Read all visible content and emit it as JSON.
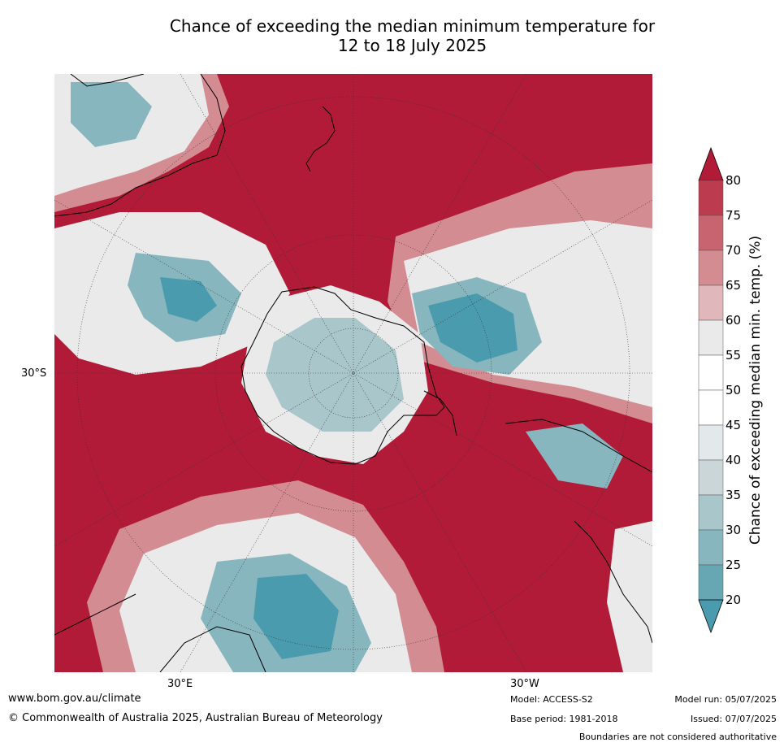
{
  "title_line1": "Chance of exceeding the median minimum temperature for",
  "title_line2": "12 to 18 July 2025",
  "lat_label": "30°S",
  "lon_label_left": "30°E",
  "lon_label_right": "30°W",
  "colorbar": {
    "label": "Chance of exceeding median min. temp. (%)",
    "ticks": [
      "80",
      "75",
      "70",
      "65",
      "60",
      "55",
      "50",
      "45",
      "40",
      "35",
      "30",
      "25",
      "20"
    ],
    "colors": [
      "#b21b37",
      "#bc3b4e",
      "#c8646f",
      "#d38c92",
      "#e0b7ba",
      "#eaeaea",
      "#ffffff",
      "#ffffff",
      "#e3e8eb",
      "#cbd6d9",
      "#a9c6cb",
      "#88b6bf",
      "#67a6b3",
      "#4a9bad"
    ],
    "extend": "both"
  },
  "colors": {
    "hot": "#b21b37",
    "warm2": "#c8646f",
    "warm1": "#e0b7ba",
    "neutral": "#eaeaea",
    "cool1": "#cbd6d9",
    "cool2": "#88b6bf",
    "cool3": "#4a9bad"
  },
  "footer": {
    "website": "www.bom.gov.au/climate",
    "copyright": "© Commonwealth of Australia 2025, Australian Bureau of Meteorology",
    "model": "Model: ACCESS-S2",
    "base_period": "Base period: 1981-2018",
    "model_run": "Model run: 05/07/2025",
    "issued": "Issued: 07/07/2025",
    "disclaimer": "Boundaries are not considered authoritative"
  }
}
